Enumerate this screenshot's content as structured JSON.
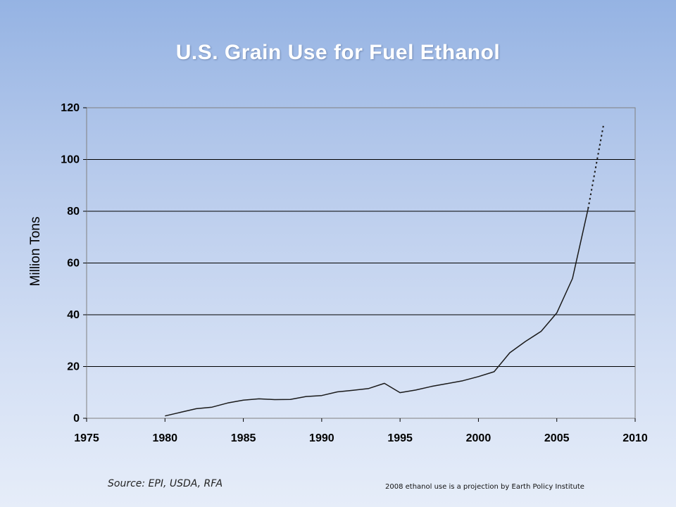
{
  "slide": {
    "title": "U.S. Grain Use for Fuel Ethanol",
    "source": "Source: EPI, USDA, RFA",
    "projection_note": "2008 ethanol use is a projection by Earth Policy Institute"
  },
  "chart_data": {
    "type": "line",
    "title": "U.S. Grain Use for Fuel Ethanol",
    "xlabel": "",
    "ylabel": "Million Tons",
    "xlim": [
      1975,
      2010
    ],
    "ylim": [
      0,
      120
    ],
    "x_ticks": [
      1975,
      1980,
      1985,
      1990,
      1995,
      2000,
      2005,
      2010
    ],
    "y_ticks": [
      0,
      20,
      40,
      60,
      80,
      100,
      120
    ],
    "grid": "horizontal",
    "series": [
      {
        "name": "Grain use for fuel ethanol",
        "style": "solid",
        "x": [
          1980,
          1981,
          1982,
          1983,
          1984,
          1985,
          1986,
          1987,
          1988,
          1989,
          1990,
          1991,
          1992,
          1993,
          1994,
          1995,
          1996,
          1997,
          1998,
          1999,
          2000,
          2001,
          2002,
          2003,
          2004,
          2005,
          2006,
          2007
        ],
        "values": [
          0.9,
          2.3,
          3.7,
          4.3,
          5.9,
          7.0,
          7.5,
          7.2,
          7.3,
          8.4,
          8.8,
          10.2,
          10.8,
          11.5,
          13.5,
          9.9,
          10.9,
          12.3,
          13.4,
          14.5,
          16.1,
          18.0,
          25.3,
          29.7,
          33.6,
          40.7,
          54.0,
          81.0
        ]
      },
      {
        "name": "2008 projection",
        "style": "dotted",
        "x": [
          2007,
          2008
        ],
        "values": [
          81.0,
          114.0
        ]
      }
    ]
  }
}
